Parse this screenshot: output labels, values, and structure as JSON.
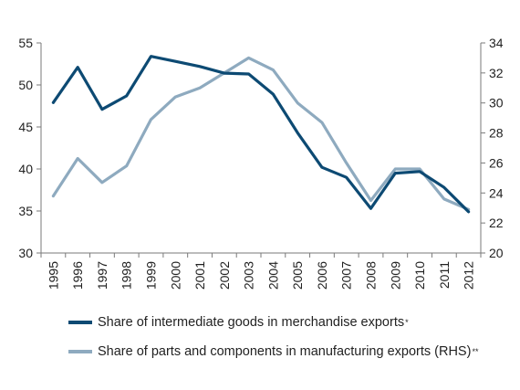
{
  "chart_data": {
    "type": "line",
    "x": [
      "1995",
      "1996",
      "1997",
      "1998",
      "1999",
      "2000",
      "2001",
      "2002",
      "2003",
      "2004",
      "2005",
      "2006",
      "2007",
      "2008",
      "2009",
      "2010",
      "2011",
      "2012"
    ],
    "series": [
      {
        "name": "Share of intermediate goods in merchandise exports",
        "name_marker": "*",
        "axis": "left",
        "color": "#0d4a73",
        "values": [
          47.9,
          52.1,
          47.1,
          48.7,
          53.4,
          52.8,
          52.2,
          51.4,
          51.3,
          48.9,
          44.3,
          40.2,
          39.0,
          35.3,
          39.5,
          39.7,
          37.8,
          34.9
        ]
      },
      {
        "name": "Share of parts and components in manufacturing exports (RHS)",
        "name_marker": "**",
        "axis": "right",
        "color": "#8eaabf",
        "values": [
          23.8,
          26.3,
          24.7,
          25.8,
          28.9,
          30.4,
          31.0,
          32.0,
          33.0,
          32.2,
          30.0,
          28.7,
          26.0,
          23.5,
          25.6,
          25.6,
          23.6,
          22.9
        ]
      }
    ],
    "y_left": {
      "ylim": [
        30,
        55
      ],
      "ticks": [
        30,
        35,
        40,
        45,
        50,
        55
      ]
    },
    "y_right": {
      "ylim": [
        20,
        34
      ],
      "ticks": [
        20,
        22,
        24,
        26,
        28,
        30,
        32,
        34
      ]
    },
    "grid": false,
    "legend_position": "bottom"
  }
}
